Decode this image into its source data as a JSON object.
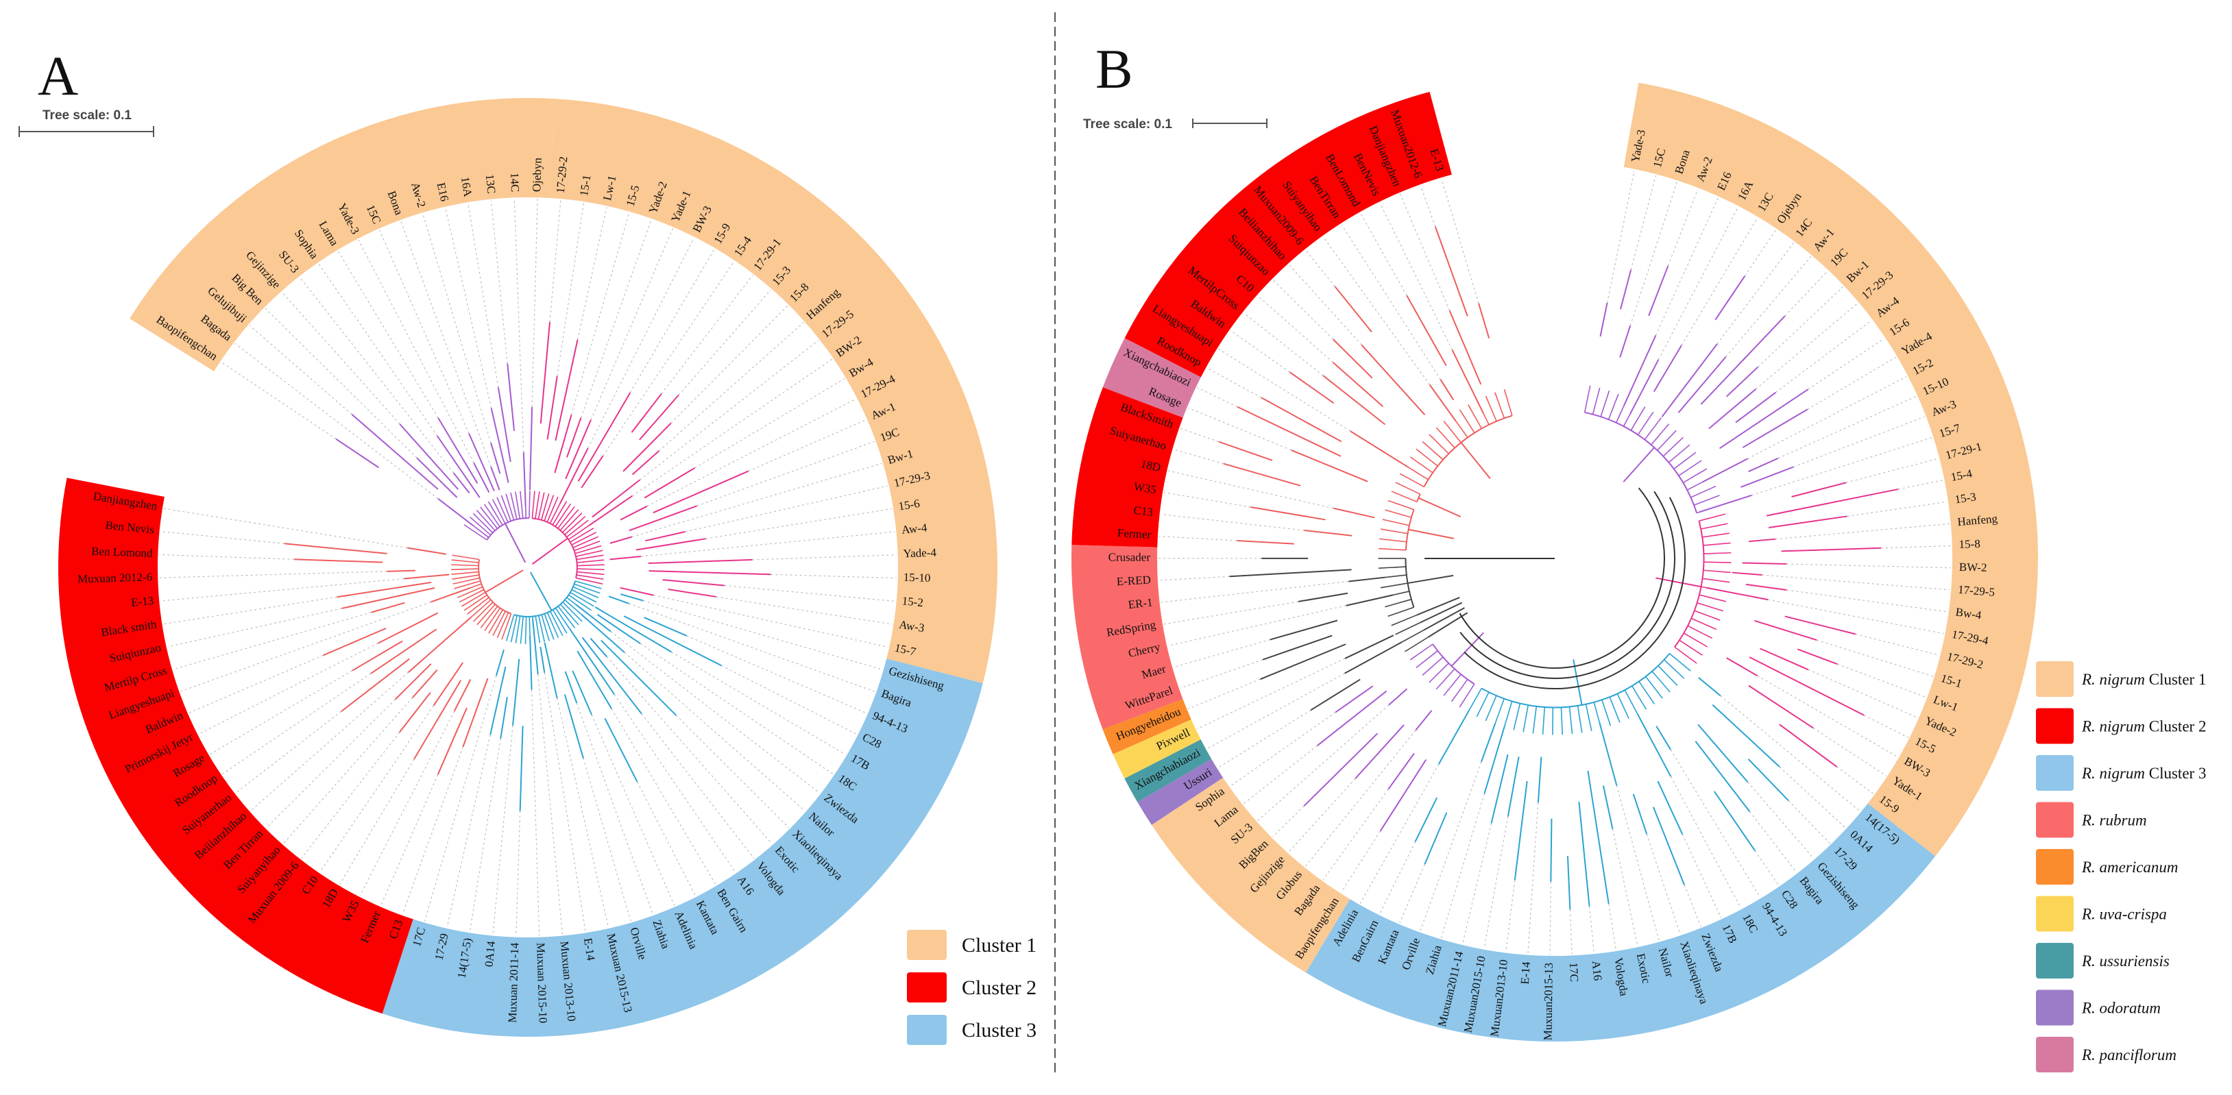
{
  "colors": {
    "cluster1": "#fbc994",
    "cluster2": "#fa0000",
    "cluster3": "#8fc6ea",
    "rubrum": "#fb6a6a",
    "americanum": "#fb8c2d",
    "uva_crispa": "#fcd557",
    "ussuriensis": "#4a9ca4",
    "odoratum": "#9b7cc8",
    "panciflorum": "#d87aa0",
    "branch_purple": "#a65ad0",
    "branch_pink": "#e8338a",
    "branch_red": "#ef5c5c",
    "branch_blue": "#2aa3d2",
    "branch_gray": "#444444"
  },
  "panelA": {
    "letter": "A",
    "scale_label": "Tree scale: 0.1",
    "legend": [
      {
        "label": "Cluster 1",
        "color": "#fbc994"
      },
      {
        "label": "Cluster 2",
        "color": "#fa0000"
      },
      {
        "label": "Cluster 3",
        "color": "#8fc6ea"
      }
    ],
    "groups": [
      {
        "cluster": 1,
        "branch": "purple",
        "color": "#fbc994",
        "leaves": [
          "Baopifengchan",
          "Bagada",
          "Gelujibuji",
          "Big Ben",
          "Gejinzige",
          "SU-3",
          "Sophia",
          "Lama",
          "Yade-3",
          "15C",
          "Bona",
          "Aw-2",
          "E16",
          "16A",
          "13C",
          "14C",
          "Ojebyn"
        ]
      },
      {
        "cluster": 1,
        "branch": "pink",
        "color": "#fbc994",
        "leaves": [
          "17-29-2",
          "15-1",
          "Lw-1",
          "15-5",
          "Yade-2",
          "Yade-1",
          "BW-3",
          "15-9",
          "15-4",
          "17-29-1",
          "15-3",
          "15-8",
          "Hanfeng",
          "17-29-5",
          "BW-2",
          "Bw-4",
          "17-29-4",
          "Aw-1",
          "19C",
          "Bw-1",
          "17-29-3",
          "15-6",
          "Aw-4",
          "Yade-4",
          "15-10",
          "15-2",
          "Aw-3",
          "15-7"
        ]
      },
      {
        "cluster": 3,
        "branch": "blue",
        "color": "#8fc6ea",
        "leaves": [
          "Gezishiseng",
          "Bagira",
          "94-4-13",
          "C28",
          "17B",
          "18C",
          "Zwiezda",
          "Nailor",
          "Xiaolieqinaya",
          "Exotic",
          "Vologda",
          "A16",
          "Ben Gairn",
          "Kantata",
          "Adelinia",
          "Ziahia",
          "Orville",
          "Muxuan 2015-13",
          "E-14",
          "Muxuan 2013-10",
          "Muxuan 2015-10",
          "Muxuan 2011-14",
          "0A14",
          "14(17-5)",
          "17-29",
          "17C"
        ]
      },
      {
        "cluster": 2,
        "branch": "red",
        "color": "#fa0000",
        "leaves": [
          "C13",
          "Fermer",
          "W35",
          "18D",
          "C10",
          "Muxuan 2009-6",
          "Suiyanyihao",
          "Ben Tirran",
          "Beiiianzhihao",
          "Suiyanerhao",
          "Roodknop",
          "Rosage",
          "Primorskij Jetyr",
          "Baldwin",
          "Liangyeshuapi",
          "Mertilp Cross",
          "Suiqiunzao",
          "Black smith",
          "E-13",
          "Muxuan 2012-6",
          "Ben Lomond",
          "Ben Nevis",
          "Danjiangzhen"
        ]
      }
    ]
  },
  "panelB": {
    "letter": "B",
    "scale_label": "Tree scale: 0.1",
    "legend": [
      {
        "italic": "R. nigrum",
        "rest": " Cluster 1",
        "color": "#fbc994"
      },
      {
        "italic": "R. nigrum",
        "rest": " Cluster 2",
        "color": "#fa0000"
      },
      {
        "italic": "R. nigrum",
        "rest": " Cluster 3",
        "color": "#8fc6ea"
      },
      {
        "italic": "R. rubrum",
        "rest": "",
        "color": "#fb6a6a"
      },
      {
        "italic": "R. americanum",
        "rest": "",
        "color": "#fb8c2d"
      },
      {
        "italic": "R. uva-crispa",
        "rest": "",
        "color": "#fcd557"
      },
      {
        "italic": "R. ussuriensis",
        "rest": "",
        "color": "#4a9ca4"
      },
      {
        "italic": "R. odoratum",
        "rest": "",
        "color": "#9b7cc8"
      },
      {
        "italic": "R. panciflorum",
        "rest": "",
        "color": "#d87aa0"
      }
    ],
    "groups": [
      {
        "branch": "purple",
        "color": "#fbc994",
        "leaves": [
          "Yade-3",
          "15C",
          "Bona",
          "Aw-2",
          "E16",
          "16A",
          "13C",
          "Ojebyn",
          "14C",
          "Aw-1",
          "19C",
          "Bw-1",
          "17-29-3",
          "Aw-4",
          "15-6",
          "Yade-4",
          "15-2",
          "15-10",
          "Aw-3",
          "15-7"
        ]
      },
      {
        "branch": "pink",
        "color": "#fbc994",
        "leaves": [
          "17-29-1",
          "15-4",
          "15-3",
          "Hanfeng",
          "15-8",
          "BW-2",
          "17-29-5",
          "Bw-4",
          "17-29-4",
          "17-29-2",
          "15-1",
          "Lw-1",
          "Yade-2",
          "15-5",
          "BW-3",
          "Yade-1",
          "15-9"
        ]
      },
      {
        "branch": "blue",
        "color": "#8fc6ea",
        "leaves": [
          "14(17-5)",
          "0A14",
          "17-29",
          "Gezishiseng",
          "Bagira",
          "C28",
          "94-4-13",
          "18C",
          "17B",
          "Zwiezda",
          "Xiaolieqinaya",
          "Nailor",
          "Exotic",
          "Vologda",
          "A16",
          "17C",
          "Muxuan2015-13",
          "E-14",
          "Muxuan2013-10",
          "Muxuan2015-10",
          "Muxuan2011-14",
          "Ziahia",
          "Orville",
          "Kantata",
          "BenGairn",
          "Adelinia"
        ]
      },
      {
        "branch": "purple",
        "color": "#fbc994",
        "leaves": [
          "Baopifengchan",
          "Bagada",
          "Globus",
          "Gejinzige",
          "BigBen",
          "SU-3",
          "Lama",
          "Sophia"
        ]
      },
      {
        "branch": "gray",
        "color": "#9b7cc8",
        "leaves": [
          "Ussuri"
        ]
      },
      {
        "branch": "gray",
        "color": "#4a9ca4",
        "leaves": [
          "Xiangchabiaozi"
        ]
      },
      {
        "branch": "gray",
        "color": "#fcd557",
        "leaves": [
          "Pixwell"
        ]
      },
      {
        "branch": "gray",
        "color": "#fb8c2d",
        "leaves": [
          "Hongyeheidou"
        ]
      },
      {
        "branch": "gray",
        "color": "#fb6a6a",
        "leaves": [
          "WitteParel",
          "Maer",
          "Cherry",
          "RedSpring",
          "ER-1",
          "E-RED",
          "Crusader"
        ]
      },
      {
        "branch": "red",
        "color": "#fa0000",
        "leaves": [
          "Fermer",
          "C13",
          "W35",
          "18D",
          "Suiyanerhao",
          "BlackSmith"
        ]
      },
      {
        "branch": "red",
        "color": "#d87aa0",
        "leaves": [
          "Rosage",
          "Xiangchabiaozi"
        ]
      },
      {
        "branch": "red",
        "color": "#fa0000",
        "leaves": [
          "Roodknop",
          "Liangyeshuapi",
          "Baldwin",
          "MertilpCross",
          "C10",
          "Suiqiunzao",
          "Beiiianzhihao",
          "Muxuan2009-6",
          "Suiyanyihao",
          "BenTirran",
          "BenLomond",
          "BenNevis",
          "Danjiangzhen",
          "Muxuan2012-6",
          "E-13"
        ]
      }
    ]
  }
}
